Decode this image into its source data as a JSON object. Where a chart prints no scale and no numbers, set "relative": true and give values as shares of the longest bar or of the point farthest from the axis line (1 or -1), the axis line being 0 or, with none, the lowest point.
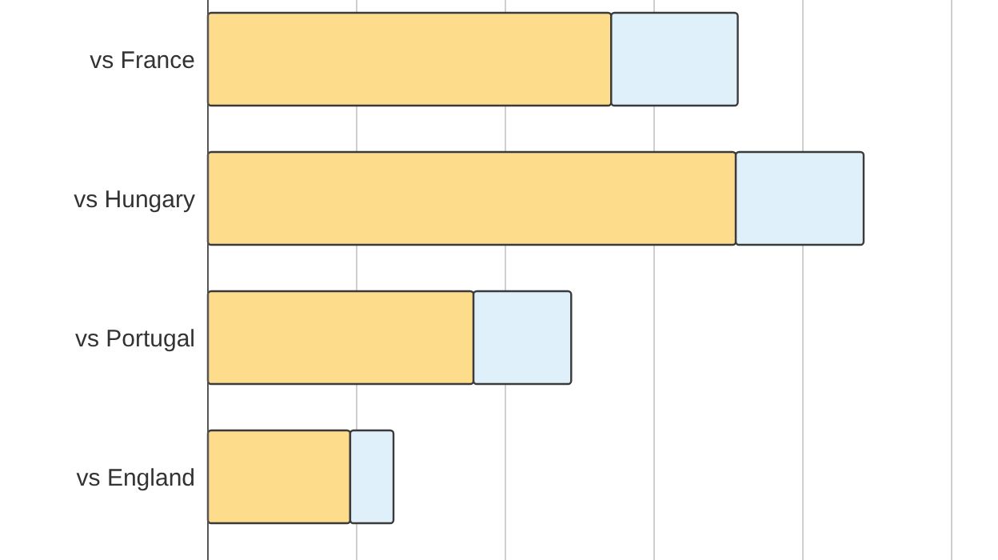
{
  "chart_data": {
    "type": "bar",
    "orientation": "horizontal",
    "stacked": true,
    "relative": true,
    "grid": "x",
    "categories": [
      "vs France",
      "vs Hungary",
      "vs Portugal",
      "vs England"
    ],
    "series": [
      {
        "color": "#fddc8c",
        "values": [
          0.615,
          0.805,
          0.405,
          0.217
        ]
      },
      {
        "color": "#dff0fa",
        "values": [
          0.193,
          0.195,
          0.149,
          0.066
        ]
      }
    ]
  }
}
